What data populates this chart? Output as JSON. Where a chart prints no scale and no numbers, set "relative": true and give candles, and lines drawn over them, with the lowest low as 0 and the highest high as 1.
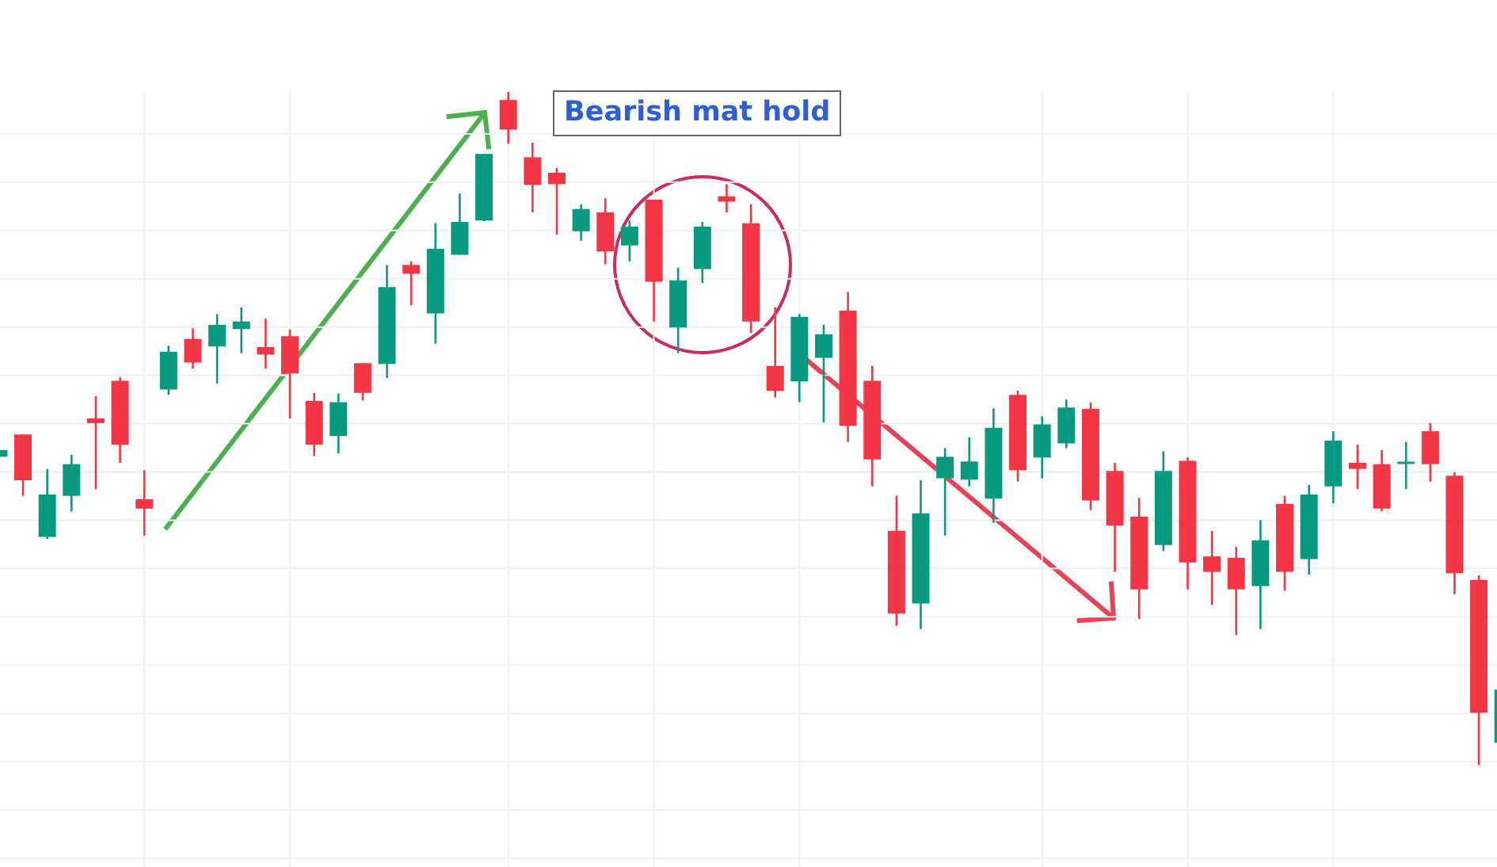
{
  "chart_data": {
    "type": "candlestick",
    "relative": true,
    "tick_labels": false,
    "grid": true,
    "categories": [
      null,
      null,
      null,
      null,
      null,
      null,
      null,
      null,
      null,
      null,
      null,
      null,
      null,
      null,
      null,
      null,
      null,
      null,
      null,
      null,
      null,
      null,
      null,
      null,
      null,
      null,
      null,
      null,
      null,
      null,
      null,
      null,
      null,
      null,
      null,
      null,
      null,
      null,
      null,
      null,
      null,
      null,
      null,
      null,
      null,
      null,
      null,
      null,
      null,
      null,
      null,
      null,
      null,
      null,
      null,
      null,
      null,
      null,
      null,
      null,
      null,
      null,
      null
    ],
    "ohlc": [
      [
        0.458,
        0.468,
        0.458,
        0.468
      ],
      [
        0.491,
        0.491,
        0.4,
        0.423
      ],
      [
        0.339,
        0.44,
        0.336,
        0.402
      ],
      [
        0.4,
        0.461,
        0.377,
        0.447
      ],
      [
        0.515,
        0.548,
        0.41,
        0.508
      ],
      [
        0.571,
        0.576,
        0.449,
        0.476
      ],
      [
        0.395,
        0.438,
        0.341,
        0.381
      ],
      [
        0.558,
        0.623,
        0.55,
        0.614
      ],
      [
        0.633,
        0.649,
        0.589,
        0.598
      ],
      [
        0.622,
        0.67,
        0.567,
        0.654
      ],
      [
        0.648,
        0.68,
        0.612,
        0.659
      ],
      [
        0.621,
        0.663,
        0.589,
        0.61
      ],
      [
        0.637,
        0.647,
        0.515,
        0.582
      ],
      [
        0.541,
        0.553,
        0.459,
        0.476
      ],
      [
        0.489,
        0.552,
        0.463,
        0.539
      ],
      [
        0.597,
        0.597,
        0.542,
        0.553
      ],
      [
        0.596,
        0.743,
        0.575,
        0.71
      ],
      [
        0.743,
        0.748,
        0.683,
        0.73
      ],
      [
        0.671,
        0.805,
        0.626,
        0.767
      ],
      [
        0.758,
        0.849,
        0.758,
        0.807
      ],
      [
        0.809,
        0.908,
        0.808,
        0.908
      ],
      [
        0.988,
        1,
        0.923,
        0.944
      ],
      [
        0.903,
        0.925,
        0.821,
        0.862
      ],
      [
        0.88,
        0.887,
        0.788,
        0.863
      ],
      [
        0.793,
        0.833,
        0.779,
        0.826
      ],
      [
        0.821,
        0.842,
        0.744,
        0.763
      ],
      [
        0.772,
        0.809,
        0.748,
        0.8
      ],
      [
        0.84,
        0.84,
        0.659,
        0.718
      ],
      [
        0.65,
        0.739,
        0.612,
        0.72
      ],
      [
        0.737,
        0.807,
        0.716,
        0.8
      ],
      [
        0.845,
        0.863,
        0.821,
        0.837
      ],
      [
        0.805,
        0.833,
        0.642,
        0.659
      ],
      [
        0.593,
        0.68,
        0.546,
        0.556
      ],
      [
        0.57,
        0.67,
        0.539,
        0.666
      ],
      [
        0.605,
        0.654,
        0.509,
        0.64
      ],
      [
        0.675,
        0.703,
        0.48,
        0.504
      ],
      [
        0.571,
        0.593,
        0.414,
        0.454
      ],
      [
        0.348,
        0.4,
        0.207,
        0.225
      ],
      [
        0.24,
        0.423,
        0.202,
        0.374
      ],
      [
        0.426,
        0.471,
        0.341,
        0.458
      ],
      [
        0.424,
        0.487,
        0.414,
        0.451
      ],
      [
        0.396,
        0.53,
        0.36,
        0.501
      ],
      [
        0.55,
        0.556,
        0.421,
        0.438
      ],
      [
        0.457,
        0.518,
        0.426,
        0.506
      ],
      [
        0.478,
        0.543,
        0.471,
        0.531
      ],
      [
        0.529,
        0.539,
        0.379,
        0.393
      ],
      [
        0.437,
        0.449,
        0.287,
        0.356
      ],
      [
        0.369,
        0.397,
        0.217,
        0.261
      ],
      [
        0.327,
        0.466,
        0.318,
        0.437
      ],
      [
        0.452,
        0.457,
        0.261,
        0.301
      ],
      [
        0.31,
        0.348,
        0.238,
        0.287
      ],
      [
        0.308,
        0.324,
        0.193,
        0.261
      ],
      [
        0.266,
        0.364,
        0.202,
        0.334
      ],
      [
        0.388,
        0.4,
        0.259,
        0.287
      ],
      [
        0.306,
        0.416,
        0.283,
        0.402
      ],
      [
        0.414,
        0.496,
        0.389,
        0.482
      ],
      [
        0.449,
        0.476,
        0.41,
        0.44
      ],
      [
        0.447,
        0.468,
        0.377,
        0.381
      ],
      [
        0.448,
        0.48,
        0.41,
        0.45
      ],
      [
        0.496,
        0.508,
        0.421,
        0.447
      ],
      [
        0.43,
        0.435,
        0.254,
        0.285
      ],
      [
        0.275,
        0.282,
        0,
        0.078
      ],
      [
        0.033,
        0.112,
        0.033,
        0.112
      ]
    ],
    "colors": [
      "#089981",
      "#f23645",
      "#089981",
      "#089981",
      "#f23645",
      "#f23645",
      "#f23645",
      "#089981",
      "#f23645",
      "#089981",
      "#089981",
      "#f23645",
      "#f23645",
      "#f23645",
      "#089981",
      "#f23645",
      "#089981",
      "#f23645",
      "#089981",
      "#089981",
      "#089981",
      "#f23645",
      "#f23645",
      "#f23645",
      "#089981",
      "#f23645",
      "#089981",
      "#f23645",
      "#089981",
      "#089981",
      "#f23645",
      "#f23645",
      "#f23645",
      "#089981",
      "#089981",
      "#f23645",
      "#f23645",
      "#f23645",
      "#089981",
      "#089981",
      "#089981",
      "#089981",
      "#f23645",
      "#089981",
      "#089981",
      "#f23645",
      "#f23645",
      "#f23645",
      "#089981",
      "#f23645",
      "#f23645",
      "#f23645",
      "#089981",
      "#f23645",
      "#089981",
      "#089981",
      "#f23645",
      "#f23645",
      "#089981",
      "#f23645",
      "#f23645",
      "#f23645",
      "#089981"
    ],
    "annotations": [
      "Bearish mat hold"
    ]
  }
}
